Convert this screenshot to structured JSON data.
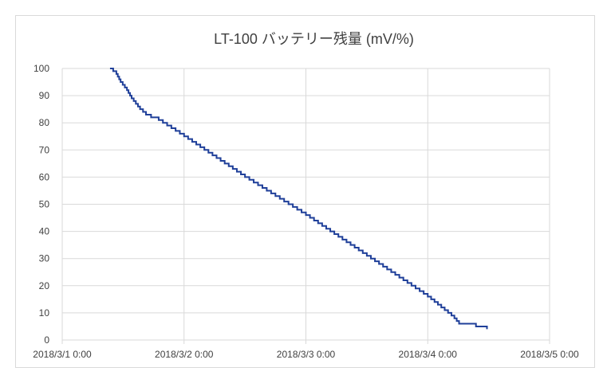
{
  "chart_data": {
    "type": "line",
    "title": "LT-100 バッテリー残量 (mV/%)",
    "xlabel": "",
    "ylabel": "",
    "grid": true,
    "legend": "none",
    "ylim": [
      0,
      100
    ],
    "xlim": [
      "2018/3/1 0:00",
      "2018/3/5 0:00"
    ],
    "y_ticks": [
      "0",
      "10",
      "20",
      "30",
      "40",
      "50",
      "60",
      "70",
      "80",
      "90",
      "100"
    ],
    "x_ticks": [
      "2018/3/1 0:00",
      "2018/3/2 0:00",
      "2018/3/3 0:00",
      "2018/3/4 0:00",
      "2018/3/5 0:00"
    ],
    "line_color": "#1f3f99",
    "grid_color": "#d9d9d9",
    "series": [
      {
        "x": [
          "2018/3/1 9:25",
          "2018/3/1 10:40",
          "2018/3/1 11:30",
          "2018/3/1 12:45",
          "2018/3/1 13:40",
          "2018/3/1 15:20",
          "2018/3/1 16:30",
          "2018/3/1 17:30",
          "2018/3/1 19:00",
          "2018/3/2 0:00",
          "2018/3/2 12:00",
          "2018/3/3 0:00",
          "2018/3/3 12:00",
          "2018/3/4 0:00",
          "2018/3/4 4:40",
          "2018/3/4 5:15",
          "2018/3/4 6:10",
          "2018/3/4 9:20",
          "2018/3/4 9:30",
          "2018/3/4 11:40"
        ],
        "y": [
          100,
          98,
          95,
          92,
          89,
          85,
          83,
          82,
          81,
          75,
          60,
          46,
          31,
          16,
          9,
          8,
          6,
          6,
          5,
          4
        ]
      }
    ]
  }
}
